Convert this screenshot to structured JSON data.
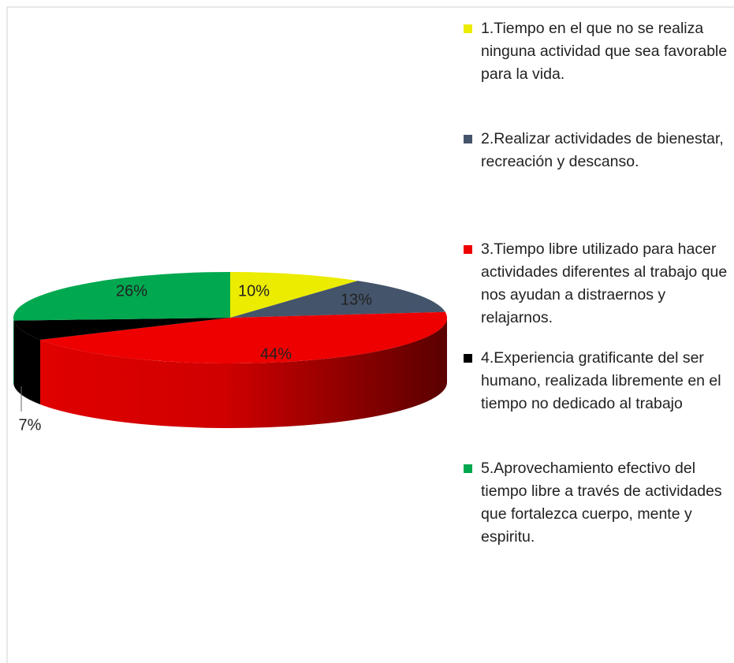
{
  "chart_data": {
    "type": "pie",
    "categories": [
      "1.Tiempo en el que no se realiza ninguna actividad que sea favorable para la vida.",
      "2.Realizar actividades de bienestar, recreación y descanso.",
      "3.Tiempo libre utilizado para hacer actividades diferentes al trabajo que nos ayudan a distraernos y relajarnos.",
      "4.Experiencia gratificante del ser humano, realizada libremente en el tiempo no dedicado al trabajo",
      "5.Aprovechamiento efectivo del tiempo libre a través de actividades que fortalezca cuerpo, mente y espiritu."
    ],
    "values": [
      10,
      13,
      44,
      7,
      26
    ],
    "value_labels": [
      "10%",
      "13%",
      "44%",
      "7%",
      "26%"
    ],
    "colors": [
      "#ecec00",
      "#44546a",
      "#ee0000",
      "#000000",
      "#00a84f"
    ],
    "legend": "right"
  }
}
